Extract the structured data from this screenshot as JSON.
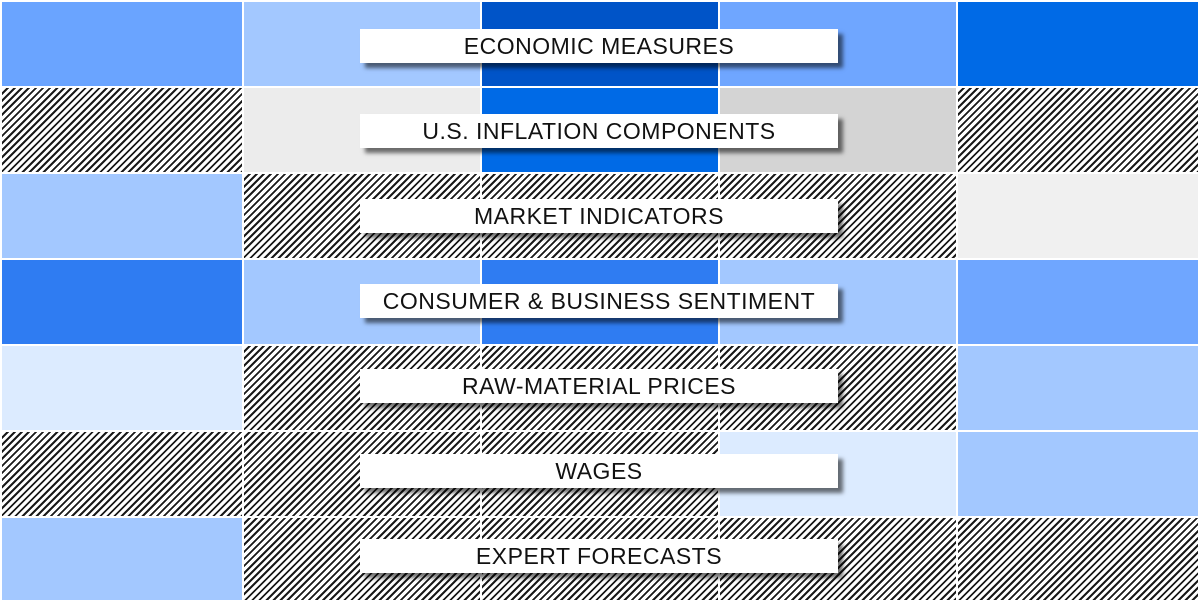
{
  "categories": [
    {
      "label": "ECONOMIC MEASURES"
    },
    {
      "label": "U.S. INFLATION COMPONENTS"
    },
    {
      "label": "MARKET INDICATORS"
    },
    {
      "label": "CONSUMER & BUSINESS SENTIMENT"
    },
    {
      "label": "RAW-MATERIAL PRICES"
    },
    {
      "label": "WAGES"
    },
    {
      "label": "EXPERT FORECASTS"
    }
  ],
  "palette": {
    "label_background": "#ffffff",
    "label_text": "#111111",
    "hatch": "#1a1a1a",
    "blues": [
      "#0054c8",
      "#006ae6",
      "#2f7cf2",
      "#6aa4ff",
      "#a3c8ff",
      "#dcebff"
    ],
    "grays": [
      "#d4d4d4",
      "#ececec",
      "#f0f0f0"
    ]
  }
}
